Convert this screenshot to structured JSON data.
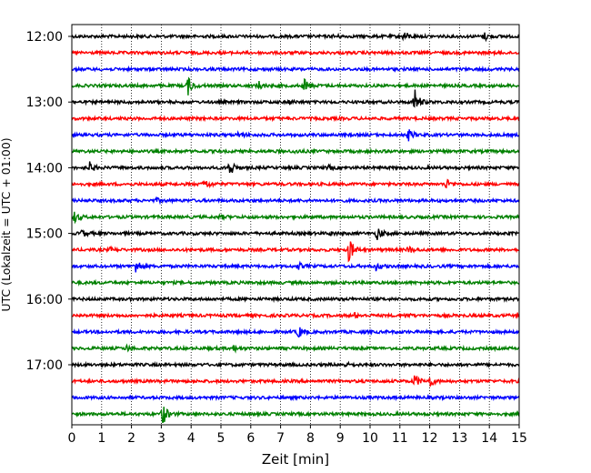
{
  "chart_data": {
    "type": "line",
    "title": "",
    "xlabel": "Zeit  [min]",
    "ylabel": "UTC (Lokalzeit = UTC + 01:00)",
    "xlim": [
      0,
      15
    ],
    "x_ticks": [
      "0",
      "1",
      "2",
      "3",
      "4",
      "5",
      "6",
      "7",
      "8",
      "9",
      "10",
      "11",
      "12",
      "13",
      "14",
      "15"
    ],
    "y_ticks": [
      "12:00",
      "13:00",
      "14:00",
      "15:00",
      "16:00",
      "17:00"
    ],
    "grid": "vertical dotted",
    "trace_interval_min": 15,
    "colors": [
      "#000000",
      "#ff0000",
      "#0000ff",
      "#008000"
    ],
    "series": [
      {
        "start": "12:00",
        "color": "#000000",
        "events": [
          [
            8.8,
            0.25
          ],
          [
            11.15,
            0.9
          ],
          [
            13.85,
            0.7
          ]
        ]
      },
      {
        "start": "12:15",
        "color": "#ff0000",
        "events": []
      },
      {
        "start": "12:30",
        "color": "#0000ff",
        "events": []
      },
      {
        "start": "12:45",
        "color": "#008000",
        "events": [
          [
            3.9,
            1.6
          ],
          [
            6.25,
            0.9
          ],
          [
            7.8,
            1.3
          ]
        ]
      },
      {
        "start": "13:00",
        "color": "#000000",
        "events": [
          [
            7.3,
            0.3
          ],
          [
            11.5,
            2.4
          ]
        ]
      },
      {
        "start": "13:15",
        "color": "#ff0000",
        "events": []
      },
      {
        "start": "13:30",
        "color": "#0000ff",
        "events": [
          [
            5.6,
            0.5
          ],
          [
            11.3,
            1.0
          ]
        ]
      },
      {
        "start": "13:45",
        "color": "#008000",
        "events": [
          [
            7.5,
            0.3
          ]
        ]
      },
      {
        "start": "14:00",
        "color": "#000000",
        "events": [
          [
            0.6,
            0.9
          ],
          [
            5.3,
            1.6
          ],
          [
            8.6,
            0.3
          ]
        ]
      },
      {
        "start": "14:15",
        "color": "#ff0000",
        "events": [
          [
            4.45,
            1.0
          ],
          [
            12.55,
            0.9
          ]
        ]
      },
      {
        "start": "14:30",
        "color": "#0000ff",
        "events": [
          [
            2.85,
            0.3
          ]
        ]
      },
      {
        "start": "14:45",
        "color": "#008000",
        "events": [
          [
            0.1,
            1.0
          ],
          [
            5.0,
            0.3
          ]
        ]
      },
      {
        "start": "15:00",
        "color": "#000000",
        "events": [
          [
            0.35,
            0.6
          ],
          [
            8.7,
            0.3
          ],
          [
            10.25,
            1.2
          ]
        ]
      },
      {
        "start": "15:15",
        "color": "#ff0000",
        "events": [
          [
            1.3,
            0.3
          ],
          [
            9.3,
            2.4
          ],
          [
            11.3,
            0.6
          ]
        ]
      },
      {
        "start": "15:30",
        "color": "#0000ff",
        "events": [
          [
            2.15,
            1.5
          ],
          [
            7.6,
            0.6
          ],
          [
            10.2,
            0.7
          ]
        ]
      },
      {
        "start": "15:45",
        "color": "#008000",
        "events": []
      },
      {
        "start": "16:00",
        "color": "#000000",
        "events": []
      },
      {
        "start": "16:15",
        "color": "#ff0000",
        "events": [
          [
            9.5,
            0.4
          ],
          [
            11.2,
            0.3
          ]
        ]
      },
      {
        "start": "16:30",
        "color": "#0000ff",
        "events": [
          [
            7.6,
            1.1
          ]
        ]
      },
      {
        "start": "16:45",
        "color": "#008000",
        "events": [
          [
            1.85,
            0.5
          ],
          [
            5.4,
            0.6
          ]
        ]
      },
      {
        "start": "17:00",
        "color": "#000000",
        "events": [
          [
            9.2,
            0.3
          ]
        ]
      },
      {
        "start": "17:15",
        "color": "#ff0000",
        "events": [
          [
            11.5,
            1.3
          ],
          [
            12.0,
            1.0
          ]
        ]
      },
      {
        "start": "17:30",
        "color": "#0000ff",
        "events": []
      },
      {
        "start": "17:45",
        "color": "#008000",
        "events": [
          [
            3.05,
            2.0
          ]
        ]
      }
    ]
  }
}
